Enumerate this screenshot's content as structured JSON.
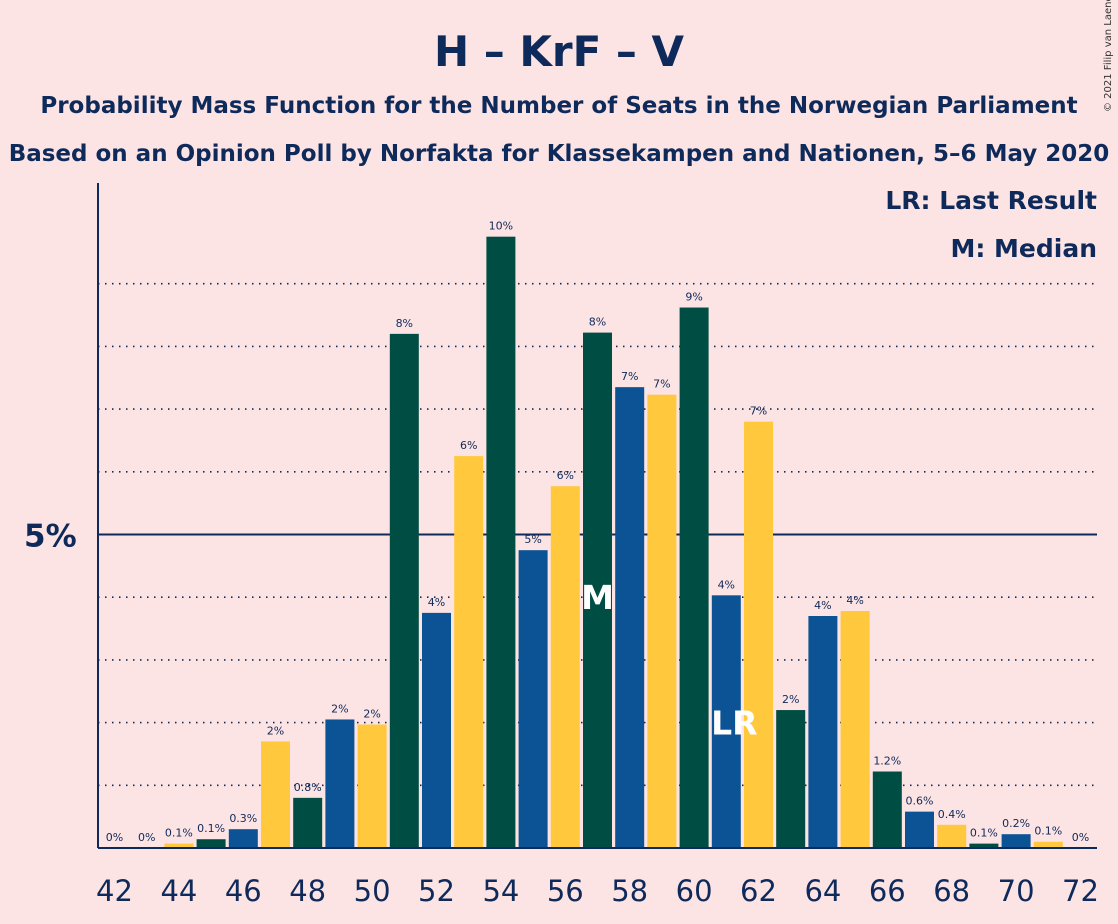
{
  "title": "H – KrF – V",
  "subtitle1": "Probability Mass Function for the Number of Seats in the Norwegian Parliament",
  "subtitle2": "Based on an Opinion Poll by Norfakta for Klassekampen and Nationen, 5–6 May 2020",
  "legend": {
    "lr": "LR: Last Result",
    "median": "M: Median"
  },
  "copyright": "© 2021 Filip van Laenen",
  "colors": {
    "background": "#fde4e4",
    "blue": "#0b5394",
    "yellow": "#ffc83d",
    "green": "#004d43",
    "text": "#0e2a5a"
  },
  "chart_data": {
    "type": "bar",
    "x": [
      42,
      43,
      44,
      45,
      46,
      47,
      48,
      49,
      50,
      51,
      52,
      53,
      54,
      55,
      56,
      57,
      58,
      59,
      60,
      61,
      62,
      63,
      64,
      65,
      66,
      67,
      68,
      69,
      70,
      71,
      72
    ],
    "values": [
      0,
      0,
      0.07,
      0.14,
      0.3,
      1.7,
      0.8,
      2.05,
      1.97,
      8.2,
      3.75,
      6.25,
      9.75,
      4.75,
      5.77,
      8.22,
      7.35,
      7.23,
      8.62,
      4.03,
      6.8,
      2.2,
      3.7,
      3.78,
      1.22,
      0.58,
      0.37,
      0.07,
      0.22,
      0.1,
      0
    ],
    "labels": [
      "0%",
      "0%",
      "0.1%",
      "0.1%",
      "0.3%",
      "2%",
      "0.8%",
      "2%",
      "2%",
      "8%",
      "4%",
      "6%",
      "10%",
      "5%",
      "6%",
      "8%",
      "7%",
      "7%",
      "9%",
      "4%",
      "7%",
      "2%",
      "4%",
      "4%",
      "1.2%",
      "0.6%",
      "0.4%",
      "0.1%",
      "0.2%",
      "0.1%",
      "0%"
    ],
    "color_cycle": [
      "green",
      "blue",
      "yellow"
    ],
    "xticks": [
      "42",
      "44",
      "46",
      "48",
      "50",
      "52",
      "54",
      "56",
      "58",
      "60",
      "62",
      "64",
      "66",
      "68",
      "70",
      "72"
    ],
    "yticks": [
      {
        "value": 5,
        "label": "5%"
      }
    ],
    "ylim": [
      0,
      10.6
    ],
    "gridlines": [
      1,
      2,
      3,
      4,
      6,
      7,
      8,
      9
    ],
    "median_seat": 57,
    "median_label": "M",
    "last_result_seat": 61,
    "last_result_label": "LR"
  }
}
